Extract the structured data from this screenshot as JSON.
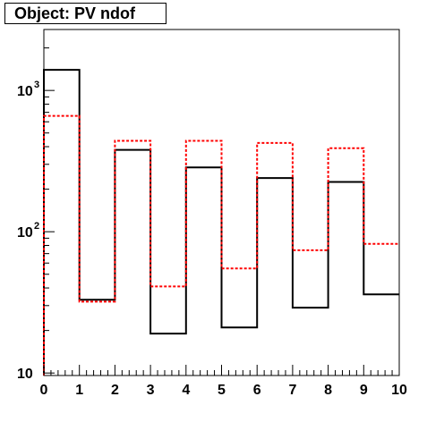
{
  "title": "Object: PV ndof",
  "chart_data": {
    "type": "histogram",
    "title": "Object: PV ndof",
    "xlabel": "",
    "ylabel": "",
    "xlim": [
      0,
      10
    ],
    "ylim": [
      9.6,
      2700
    ],
    "yscale": "log",
    "x_ticks": [
      "0",
      "1",
      "2",
      "3",
      "4",
      "5",
      "6",
      "7",
      "8",
      "9",
      "10"
    ],
    "y_ticks": [
      {
        "value": 10,
        "base": "10",
        "exp": ""
      },
      {
        "value": 100,
        "base": "10",
        "exp": "2"
      },
      {
        "value": 1000,
        "base": "10",
        "exp": "3"
      }
    ],
    "bin_edges": [
      0,
      1,
      2,
      3,
      4,
      5,
      6,
      7,
      8,
      9,
      10
    ],
    "series": [
      {
        "style": "solid",
        "color": "#000000",
        "values": [
          1400,
          33,
          380,
          19,
          285,
          21,
          240,
          29,
          225,
          36
        ]
      },
      {
        "style": "dashed",
        "color": "#ff0000",
        "values": [
          660,
          32,
          440,
          41,
          440,
          55,
          425,
          74,
          390,
          82
        ]
      }
    ]
  }
}
